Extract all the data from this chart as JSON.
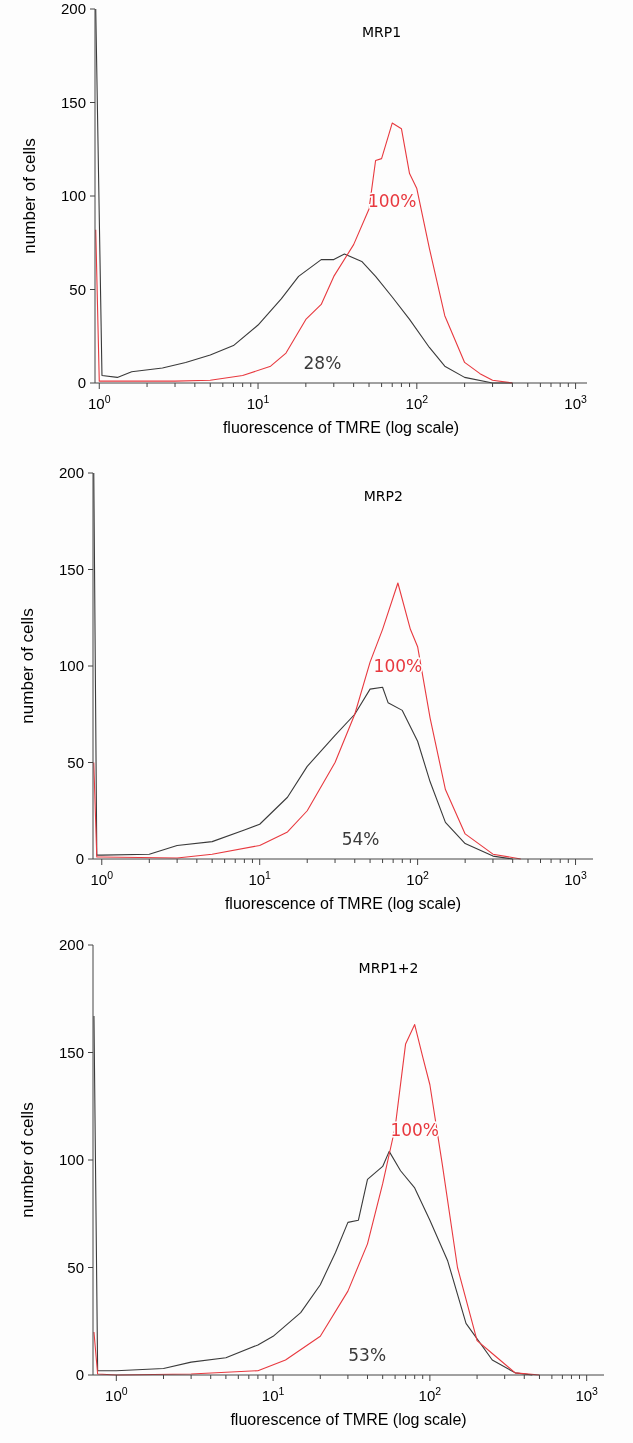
{
  "chart_data": [
    {
      "type": "line",
      "title": "MRP1",
      "xlabel": "fluorescence of TMRE (log scale)",
      "ylabel": "number of cells",
      "log": "x",
      "grid": false,
      "xlim": [
        0.94,
        1180
      ],
      "ylim": [
        0,
        200
      ],
      "yticks": [
        0,
        50,
        100,
        150,
        200
      ],
      "xticks": [
        {
          "value": 1,
          "label": "10$^{0}$"
        },
        {
          "value": 2,
          "label": null
        },
        {
          "value": 3,
          "label": null
        },
        {
          "value": 4,
          "label": null
        },
        {
          "value": 5,
          "label": null
        },
        {
          "value": 6,
          "label": null
        },
        {
          "value": 7,
          "label": null
        },
        {
          "value": 8,
          "label": null
        },
        {
          "value": 9,
          "label": null
        },
        {
          "value": 10,
          "label": "10$^{1}$"
        },
        {
          "value": 20,
          "label": null
        },
        {
          "value": 30,
          "label": null
        },
        {
          "value": 40,
          "label": null
        },
        {
          "value": 50,
          "label": null
        },
        {
          "value": 60,
          "label": null
        },
        {
          "value": 70,
          "label": null
        },
        {
          "value": 80,
          "label": null
        },
        {
          "value": 90,
          "label": null
        },
        {
          "value": 100,
          "label": "10$^{2}$"
        },
        {
          "value": 200,
          "label": null
        },
        {
          "value": 300,
          "label": null
        },
        {
          "value": 400,
          "label": null
        },
        {
          "value": 500,
          "label": null
        },
        {
          "value": 600,
          "label": null
        },
        {
          "value": 700,
          "label": null
        },
        {
          "value": 800,
          "label": null
        },
        {
          "value": 900,
          "label": null
        },
        {
          "value": 1000,
          "label": "10$^{3}$"
        }
      ],
      "series": [
        {
          "color": "#3a3a3a",
          "x": [
            0.95,
            1.04,
            1.3,
            1.6,
            2.5,
            3.5,
            5,
            7,
            10,
            14,
            18,
            25,
            30,
            35,
            45,
            55,
            70,
            90,
            120,
            150,
            200,
            300,
            400
          ],
          "values": [
            200,
            4,
            3,
            6,
            8,
            11,
            15,
            20,
            31,
            45,
            57,
            66,
            66,
            69,
            65,
            57,
            46,
            34,
            19,
            9,
            3,
            0,
            0
          ]
        },
        {
          "color": "#e8393f",
          "x": [
            0.95,
            1.0,
            1.5,
            3,
            5,
            8,
            12,
            15,
            20,
            25,
            30,
            40,
            50,
            55,
            60,
            70,
            80,
            90,
            100,
            120,
            150,
            200,
            250,
            300,
            400
          ],
          "values": [
            82,
            1,
            1,
            1,
            1.5,
            4,
            9,
            16,
            34,
            42,
            57,
            74,
            93,
            119,
            120,
            139,
            136,
            112,
            104,
            72,
            36,
            11,
            5,
            1.5,
            0
          ]
        }
      ],
      "annotations": [
        "28%",
        "100%"
      ]
    },
    {
      "type": "line",
      "title": "MRP2",
      "xlabel": "fluorescence of TMRE (log scale)",
      "ylabel": "number of cells",
      "log": "x",
      "grid": false,
      "xlim": [
        0.88,
        1290
      ],
      "ylim": [
        0,
        200
      ],
      "yticks": [
        0,
        50,
        100,
        150,
        200
      ],
      "xticks": [
        {
          "value": 1,
          "label": "10$^{0}$"
        },
        {
          "value": 2,
          "label": null
        },
        {
          "value": 3,
          "label": null
        },
        {
          "value": 4,
          "label": null
        },
        {
          "value": 5,
          "label": null
        },
        {
          "value": 6,
          "label": null
        },
        {
          "value": 7,
          "label": null
        },
        {
          "value": 8,
          "label": null
        },
        {
          "value": 9,
          "label": null
        },
        {
          "value": 10,
          "label": "10$^{1}$"
        },
        {
          "value": 20,
          "label": null
        },
        {
          "value": 30,
          "label": null
        },
        {
          "value": 40,
          "label": null
        },
        {
          "value": 50,
          "label": null
        },
        {
          "value": 60,
          "label": null
        },
        {
          "value": 70,
          "label": null
        },
        {
          "value": 80,
          "label": null
        },
        {
          "value": 90,
          "label": null
        },
        {
          "value": 100,
          "label": "10$^{2}$"
        },
        {
          "value": 200,
          "label": null
        },
        {
          "value": 300,
          "label": null
        },
        {
          "value": 400,
          "label": null
        },
        {
          "value": 500,
          "label": null
        },
        {
          "value": 600,
          "label": null
        },
        {
          "value": 700,
          "label": null
        },
        {
          "value": 800,
          "label": null
        },
        {
          "value": 900,
          "label": null
        },
        {
          "value": 1000,
          "label": "10$^{3}$"
        }
      ],
      "series": [
        {
          "color": "#3a3a3a",
          "x": [
            0.89,
            0.93,
            1.0,
            2,
            3,
            5,
            8,
            10,
            15,
            20,
            30,
            40,
            50,
            60,
            65,
            80,
            100,
            120,
            150,
            200,
            300,
            400
          ],
          "values": [
            200,
            2,
            2,
            2.5,
            7,
            9,
            15,
            18,
            32,
            48,
            64,
            75,
            88,
            89,
            81,
            77,
            61,
            40,
            19,
            8,
            1.5,
            0
          ]
        },
        {
          "color": "#e8393f",
          "x": [
            0.89,
            0.93,
            1.0,
            3,
            5,
            10,
            15,
            20,
            30,
            40,
            50,
            60,
            75,
            90,
            100,
            120,
            150,
            200,
            300,
            450
          ],
          "values": [
            50,
            1,
            1,
            0.5,
            2.5,
            7,
            14,
            25,
            50,
            75,
            102,
            119,
            143,
            119,
            110,
            73,
            36,
            13,
            2.5,
            0
          ]
        }
      ],
      "annotations": [
        "54%",
        "100%"
      ]
    },
    {
      "type": "line",
      "title": "MRP1+2",
      "xlabel": "fluorescence of TMRE (log scale)",
      "ylabel": "number of cells",
      "log": "x",
      "grid": false,
      "xlim": [
        0.71,
        1290
      ],
      "ylim": [
        0,
        200
      ],
      "yticks": [
        0,
        50,
        100,
        150,
        200
      ],
      "xticks": [
        {
          "value": 1,
          "label": "10$^{0}$"
        },
        {
          "value": 2,
          "label": null
        },
        {
          "value": 3,
          "label": null
        },
        {
          "value": 4,
          "label": null
        },
        {
          "value": 5,
          "label": null
        },
        {
          "value": 6,
          "label": null
        },
        {
          "value": 7,
          "label": null
        },
        {
          "value": 8,
          "label": null
        },
        {
          "value": 9,
          "label": null
        },
        {
          "value": 10,
          "label": "10$^{1}$"
        },
        {
          "value": 20,
          "label": null
        },
        {
          "value": 30,
          "label": null
        },
        {
          "value": 40,
          "label": null
        },
        {
          "value": 50,
          "label": null
        },
        {
          "value": 60,
          "label": null
        },
        {
          "value": 70,
          "label": null
        },
        {
          "value": 80,
          "label": null
        },
        {
          "value": 90,
          "label": null
        },
        {
          "value": 100,
          "label": "10$^{2}$"
        },
        {
          "value": 200,
          "label": null
        },
        {
          "value": 300,
          "label": null
        },
        {
          "value": 400,
          "label": null
        },
        {
          "value": 500,
          "label": null
        },
        {
          "value": 600,
          "label": null
        },
        {
          "value": 700,
          "label": null
        },
        {
          "value": 800,
          "label": null
        },
        {
          "value": 900,
          "label": null
        },
        {
          "value": 1000,
          "label": "10$^{3}$"
        }
      ],
      "series": [
        {
          "color": "#3a3a3a",
          "x": [
            0.72,
            0.76,
            1.0,
            2,
            3,
            5,
            8,
            10,
            15,
            20,
            25,
            30,
            35,
            40,
            50,
            55,
            65,
            80,
            100,
            130,
            170,
            250,
            350,
            450
          ],
          "values": [
            167,
            2,
            2,
            3,
            6,
            8,
            14,
            18,
            29,
            42,
            57,
            71,
            72,
            91,
            97,
            104,
            95,
            87,
            72,
            53,
            24,
            7,
            1,
            0
          ]
        },
        {
          "color": "#e8393f",
          "x": [
            0.72,
            0.76,
            1.0,
            3,
            8,
            12,
            20,
            30,
            40,
            50,
            60,
            70,
            80,
            90,
            100,
            120,
            150,
            200,
            250,
            350,
            500
          ],
          "values": [
            20,
            0.5,
            0,
            0.5,
            2,
            7,
            18,
            39,
            61,
            89,
            115,
            154,
            163,
            148,
            135,
            98,
            50,
            16,
            10,
            1,
            0
          ]
        }
      ],
      "annotations": [
        "53%",
        "100%"
      ]
    }
  ]
}
